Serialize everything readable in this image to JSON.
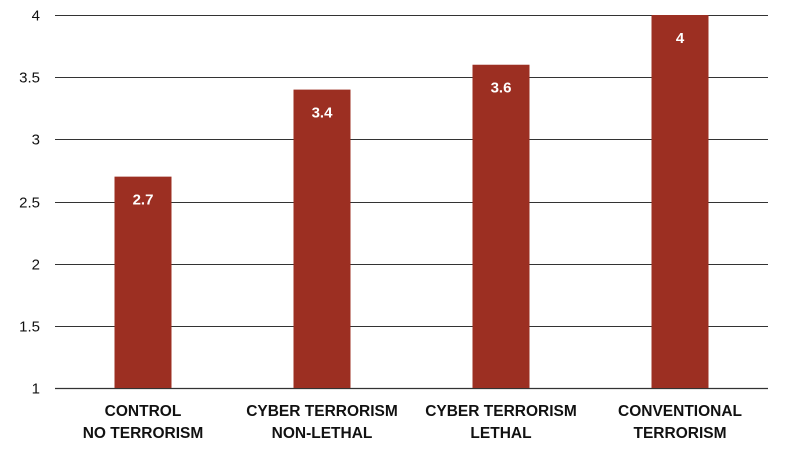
{
  "chart_data": {
    "type": "bar",
    "title": "",
    "xlabel": "",
    "ylabel": "",
    "categories": [
      [
        "CONTROL",
        "NO TERRORISM"
      ],
      [
        "CYBER TERRORISM",
        "NON-LETHAL"
      ],
      [
        "CYBER TERRORISM",
        "LETHAL"
      ],
      [
        "CONVENTIONAL",
        "TERRORISM"
      ]
    ],
    "values": [
      2.7,
      3.4,
      3.6,
      4
    ],
    "data_labels": [
      "2.7",
      "3.4",
      "3.6",
      "4"
    ],
    "ylim": [
      1,
      4
    ],
    "yticks": [
      1,
      1.5,
      2,
      2.5,
      3,
      3.5,
      4
    ],
    "ytick_labels": [
      "1",
      "1.5",
      "2",
      "2.5",
      "3",
      "3.5",
      "4"
    ],
    "grid": true,
    "legend": "none",
    "bar_color": "#9c2f22",
    "grid_color": "#333333"
  }
}
